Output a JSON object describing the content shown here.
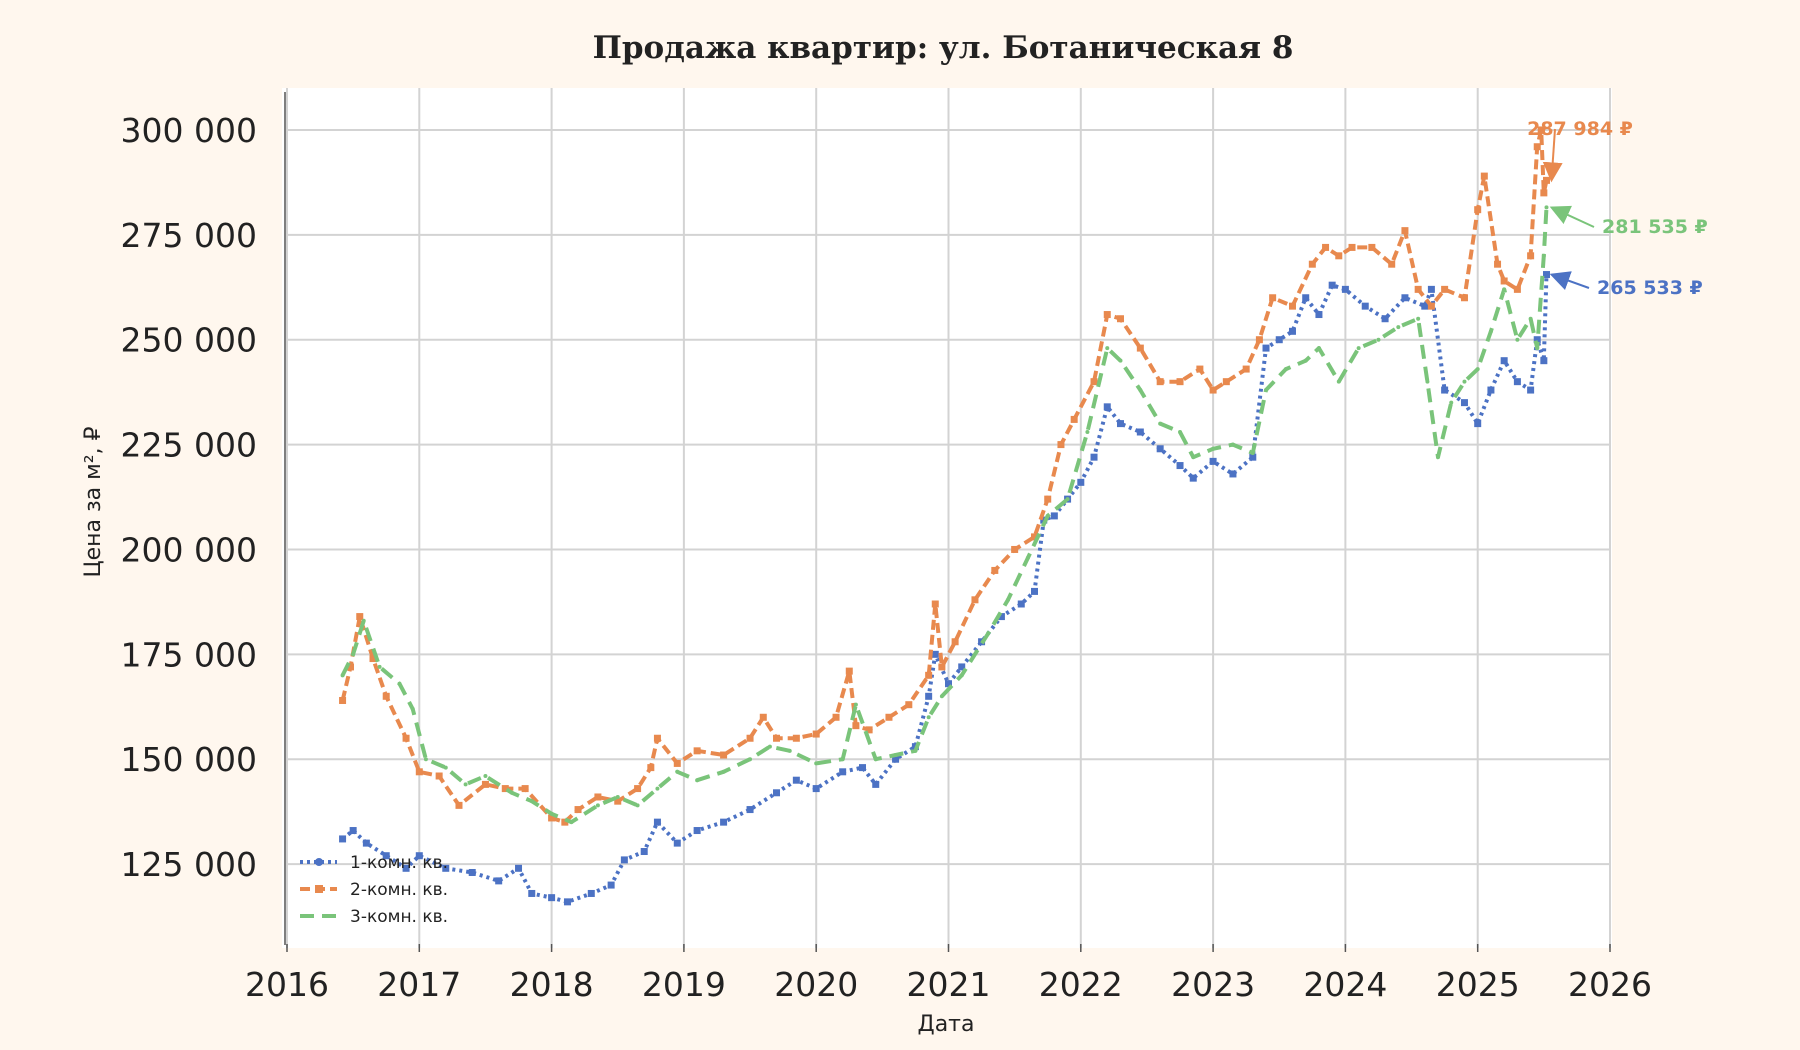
{
  "chart_data": {
    "type": "line",
    "title": "Продажа квартир: ул. Ботаническая 8",
    "xlabel": "Дата",
    "ylabel": "Цена за м², ₽",
    "xlim": [
      2016,
      2026
    ],
    "ylim": [
      105000,
      310000
    ],
    "grid": true,
    "legend_position": "bottom-left",
    "x_ticks": [
      {
        "value": 2016,
        "label": "2016"
      },
      {
        "value": 2017,
        "label": "2017"
      },
      {
        "value": 2018,
        "label": "2018"
      },
      {
        "value": 2019,
        "label": "2019"
      },
      {
        "value": 2020,
        "label": "2020"
      },
      {
        "value": 2021,
        "label": "2021"
      },
      {
        "value": 2022,
        "label": "2022"
      },
      {
        "value": 2023,
        "label": "2023"
      },
      {
        "value": 2024,
        "label": "2024"
      },
      {
        "value": 2025,
        "label": "2025"
      },
      {
        "value": 2026,
        "label": "2026"
      }
    ],
    "y_ticks": [
      {
        "value": 125000,
        "label": "125 000"
      },
      {
        "value": 150000,
        "label": "150 000"
      },
      {
        "value": 175000,
        "label": "175 000"
      },
      {
        "value": 200000,
        "label": "200 000"
      },
      {
        "value": 225000,
        "label": "225 000"
      },
      {
        "value": 250000,
        "label": "250 000"
      },
      {
        "value": 275000,
        "label": "275 000"
      },
      {
        "value": 300000,
        "label": "300 000"
      }
    ],
    "series": [
      {
        "name": "1-комн. кв.",
        "color": "#4c72c4",
        "style": "dotted-star",
        "x": [
          2016.42,
          2016.5,
          2016.6,
          2016.75,
          2016.9,
          2017.0,
          2017.2,
          2017.4,
          2017.6,
          2017.75,
          2017.85,
          2018.0,
          2018.12,
          2018.3,
          2018.45,
          2018.55,
          2018.7,
          2018.8,
          2018.95,
          2019.1,
          2019.3,
          2019.5,
          2019.7,
          2019.85,
          2020.0,
          2020.2,
          2020.35,
          2020.45,
          2020.6,
          2020.75,
          2020.85,
          2020.9,
          2021.0,
          2021.1,
          2021.25,
          2021.4,
          2021.55,
          2021.65,
          2021.72,
          2021.8,
          2021.9,
          2022.0,
          2022.1,
          2022.2,
          2022.3,
          2022.45,
          2022.6,
          2022.75,
          2022.85,
          2023.0,
          2023.15,
          2023.3,
          2023.4,
          2023.5,
          2023.6,
          2023.7,
          2023.8,
          2023.9,
          2024.0,
          2024.15,
          2024.3,
          2024.45,
          2024.6,
          2024.65,
          2024.75,
          2024.9,
          2025.0,
          2025.1,
          2025.2,
          2025.3,
          2025.4,
          2025.45,
          2025.5,
          2025.52
        ],
        "values": [
          131000,
          133000,
          130000,
          127000,
          124000,
          127000,
          124000,
          123000,
          121000,
          124000,
          118000,
          117000,
          116000,
          118000,
          120000,
          126000,
          128000,
          135000,
          130000,
          133000,
          135000,
          138000,
          142000,
          145000,
          143000,
          147000,
          148000,
          144000,
          150000,
          153000,
          165000,
          175000,
          168000,
          172000,
          178000,
          184000,
          187000,
          190000,
          207000,
          208000,
          212000,
          216000,
          222000,
          234000,
          230000,
          228000,
          224000,
          220000,
          217000,
          221000,
          218000,
          222000,
          248000,
          250000,
          252000,
          260000,
          256000,
          263000,
          262000,
          258000,
          255000,
          260000,
          258000,
          262000,
          238000,
          235000,
          230000,
          238000,
          245000,
          240000,
          238000,
          250000,
          245000,
          265533
        ]
      },
      {
        "name": "2-комн. кв.",
        "color": "#e8894e",
        "style": "dashed-square",
        "x": [
          2016.42,
          2016.48,
          2016.55,
          2016.65,
          2016.75,
          2016.9,
          2017.0,
          2017.15,
          2017.3,
          2017.5,
          2017.65,
          2017.8,
          2018.0,
          2018.1,
          2018.2,
          2018.35,
          2018.5,
          2018.65,
          2018.75,
          2018.8,
          2018.95,
          2019.1,
          2019.3,
          2019.5,
          2019.6,
          2019.7,
          2019.85,
          2020.0,
          2020.15,
          2020.25,
          2020.3,
          2020.4,
          2020.55,
          2020.7,
          2020.85,
          2020.9,
          2020.95,
          2021.05,
          2021.2,
          2021.35,
          2021.5,
          2021.65,
          2021.75,
          2021.85,
          2021.95,
          2022.1,
          2022.2,
          2022.3,
          2022.45,
          2022.6,
          2022.75,
          2022.9,
          2023.0,
          2023.1,
          2023.25,
          2023.35,
          2023.45,
          2023.6,
          2023.75,
          2023.85,
          2023.95,
          2024.05,
          2024.2,
          2024.35,
          2024.45,
          2024.55,
          2024.65,
          2024.75,
          2024.9,
          2025.0,
          2025.05,
          2025.15,
          2025.2,
          2025.3,
          2025.4,
          2025.45,
          2025.48,
          2025.5,
          2025.52
        ],
        "values": [
          164000,
          172000,
          184000,
          174000,
          165000,
          155000,
          147000,
          146000,
          139000,
          144000,
          143000,
          143000,
          136000,
          135000,
          138000,
          141000,
          140000,
          143000,
          148000,
          155000,
          149000,
          152000,
          151000,
          155000,
          160000,
          155000,
          155000,
          156000,
          160000,
          171000,
          158000,
          157000,
          160000,
          163000,
          170000,
          187000,
          172000,
          178000,
          188000,
          195000,
          200000,
          203000,
          212000,
          225000,
          231000,
          240000,
          256000,
          255000,
          248000,
          240000,
          240000,
          243000,
          238000,
          240000,
          243000,
          250000,
          260000,
          258000,
          268000,
          272000,
          270000,
          272000,
          272000,
          268000,
          276000,
          262000,
          258000,
          262000,
          260000,
          281000,
          289000,
          268000,
          264000,
          262000,
          270000,
          296000,
          300000,
          285000,
          287984
        ]
      },
      {
        "name": "3-комн. кв.",
        "color": "#7ac47a",
        "style": "dashed",
        "x": [
          2016.42,
          2016.5,
          2016.58,
          2016.7,
          2016.85,
          2016.95,
          2017.05,
          2017.2,
          2017.35,
          2017.5,
          2017.7,
          2017.85,
          2018.0,
          2018.15,
          2018.35,
          2018.5,
          2018.65,
          2018.8,
          2018.95,
          2019.1,
          2019.3,
          2019.5,
          2019.65,
          2019.8,
          2020.0,
          2020.2,
          2020.3,
          2020.45,
          2020.6,
          2020.75,
          2020.85,
          2020.95,
          2021.1,
          2021.3,
          2021.45,
          2021.6,
          2021.75,
          2021.9,
          2022.05,
          2022.2,
          2022.3,
          2022.45,
          2022.6,
          2022.75,
          2022.85,
          2023.0,
          2023.15,
          2023.3,
          2023.4,
          2023.55,
          2023.7,
          2023.8,
          2023.95,
          2024.1,
          2024.25,
          2024.4,
          2024.55,
          2024.62,
          2024.7,
          2024.8,
          2024.9,
          2025.0,
          2025.1,
          2025.2,
          2025.3,
          2025.4,
          2025.45,
          2025.5,
          2025.52
        ],
        "values": [
          170000,
          175000,
          183000,
          172000,
          168000,
          162000,
          150000,
          148000,
          144000,
          146000,
          142000,
          140000,
          137000,
          135000,
          139000,
          141000,
          139000,
          143000,
          147000,
          145000,
          147000,
          150000,
          153000,
          152000,
          149000,
          150000,
          163000,
          150000,
          151000,
          152000,
          160000,
          165000,
          170000,
          180000,
          188000,
          198000,
          208000,
          212000,
          228000,
          248000,
          245000,
          238000,
          230000,
          228000,
          222000,
          224000,
          225000,
          223000,
          238000,
          243000,
          245000,
          248000,
          240000,
          248000,
          250000,
          253000,
          255000,
          240000,
          222000,
          235000,
          240000,
          243000,
          252000,
          262000,
          250000,
          255000,
          248000,
          270000,
          281535
        ]
      }
    ],
    "annotations": [
      {
        "series": "2-комн. кв.",
        "text": "287 984 ₽",
        "color": "#e8894e"
      },
      {
        "series": "3-комн. кв.",
        "text": "281 535 ₽",
        "color": "#7ac47a"
      },
      {
        "series": "1-комн. кв.",
        "text": "265 533 ₽",
        "color": "#4c72c4"
      }
    ]
  }
}
